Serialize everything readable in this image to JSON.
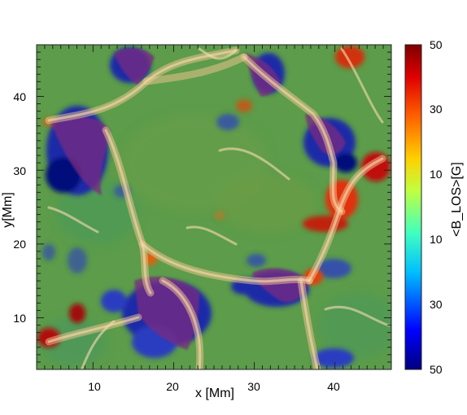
{
  "chart_data": {
    "type": "heatmap",
    "title": "",
    "xlabel": "x [Mm]",
    "ylabel": "y[Mm]",
    "xlim": [
      3,
      47
    ],
    "ylim": [
      3,
      47
    ],
    "x_ticks": [
      "10",
      "20",
      "30",
      "40"
    ],
    "y_ticks": [
      "10",
      "20",
      "30",
      "40"
    ],
    "colorbar": {
      "label": "<B_LOS>[G]",
      "ticks": [
        "50",
        "30",
        "10",
        "10",
        "30",
        "50"
      ],
      "colors": [
        "#00007f",
        "#0000ff",
        "#00bfff",
        "#40ffc0",
        "#c0ff40",
        "#ffd000",
        "#ff6000",
        "#e00000",
        "#7f0000"
      ]
    },
    "overlay": "translucent orange network of bright loop lanes",
    "background_color": "#5a9a4a"
  }
}
